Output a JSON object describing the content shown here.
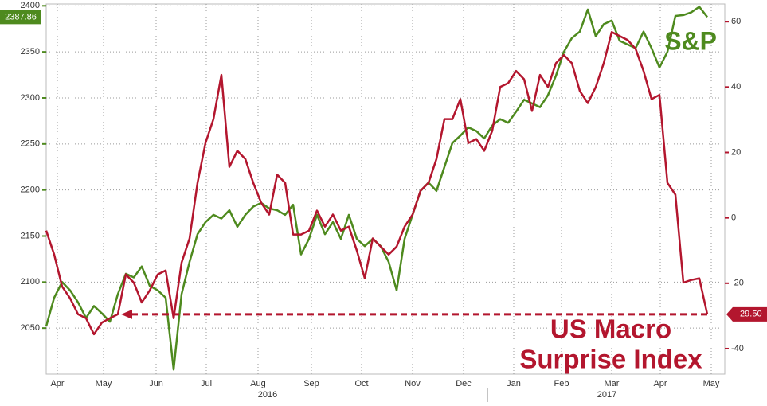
{
  "chart_data": {
    "type": "line",
    "xlim": [
      0,
      85.2
    ],
    "xticks": [
      {
        "value": 1.4,
        "label": "Apr"
      },
      {
        "value": 7.2,
        "label": "May"
      },
      {
        "value": 13.8,
        "label": "Jun"
      },
      {
        "value": 20.1,
        "label": "Jul"
      },
      {
        "value": 26.6,
        "label": "Aug"
      },
      {
        "value": 33.3,
        "label": "Sep"
      },
      {
        "value": 39.6,
        "label": "Oct"
      },
      {
        "value": 46,
        "label": "Nov"
      },
      {
        "value": 52.4,
        "label": "Dec"
      },
      {
        "value": 58.7,
        "label": "Jan"
      },
      {
        "value": 64.7,
        "label": "Feb"
      },
      {
        "value": 71,
        "label": "Mar"
      },
      {
        "value": 77.1,
        "label": "Apr"
      },
      {
        "value": 83.5,
        "label": "May"
      }
    ],
    "year_labels": [
      {
        "value": 27.8,
        "label": "2016"
      },
      {
        "value": 70.4,
        "label": "2017"
      }
    ],
    "ylim": [
      2000,
      2402
    ],
    "yticks": [
      2050,
      2100,
      2150,
      2200,
      2250,
      2300,
      2350,
      2400
    ],
    "y2lim": [
      -47.8,
      65.4
    ],
    "y2ticks": [
      -40,
      -20,
      0,
      20,
      40,
      60
    ],
    "grid": true,
    "annotations": {
      "sp": "S&P",
      "macro": [
        "US Macro",
        "Surprise Index"
      ]
    },
    "series": [
      {
        "name": "S&P",
        "color": "#4e8a1e",
        "axis": "y",
        "values": [
          2052,
          2083,
          2100,
          2091,
          2078,
          2061,
          2074,
          2066,
          2057,
          2087,
          2109,
          2105,
          2117,
          2096,
          2091,
          2083,
          2005,
          2087,
          2122,
          2152,
          2165,
          2173,
          2169,
          2178,
          2160,
          2173,
          2182,
          2186,
          2180,
          2178,
          2173,
          2184,
          2130,
          2147,
          2173,
          2152,
          2165,
          2147,
          2173,
          2147,
          2139,
          2147,
          2139,
          2122,
          2091,
          2147,
          2173,
          2199,
          2208,
          2199,
          2225,
          2251,
          2259,
          2268,
          2264,
          2256,
          2270,
          2277,
          2273,
          2285,
          2298,
          2294,
          2290,
          2303,
          2324,
          2350,
          2365,
          2372,
          2396,
          2367,
          2380,
          2384,
          2362,
          2358,
          2354,
          2372,
          2354,
          2333,
          2350,
          2389,
          2390,
          2393,
          2399,
          2387.86
        ]
      },
      {
        "name": "US Macro Surprise Index",
        "color": "#b3162e",
        "axis": "y2",
        "values": [
          -3.9,
          -11.2,
          -21,
          -24.6,
          -29.5,
          -30.7,
          -35.6,
          -32,
          -30.7,
          -29.5,
          -17.3,
          -19.8,
          -25.9,
          -22.2,
          -17.3,
          -16.1,
          -30.7,
          -13.7,
          -6.3,
          10.7,
          22.9,
          30.2,
          43.7,
          15.6,
          20.5,
          18,
          10.7,
          4.6,
          1,
          13.2,
          10.7,
          -5.1,
          -5.1,
          -3.9,
          2.2,
          -2.7,
          1,
          -3.9,
          -2.7,
          -10,
          -18.5,
          -6.3,
          -8.8,
          -11.2,
          -8.8,
          -2.7,
          1,
          8.3,
          10.7,
          18,
          30.2,
          30.2,
          36.3,
          22.9,
          24.1,
          20.5,
          26.6,
          40,
          41.2,
          44.9,
          42.4,
          32.7,
          43.7,
          40,
          47.3,
          49.8,
          47.3,
          38.8,
          35.1,
          40,
          47.3,
          56.8,
          55.6,
          54.4,
          51.7,
          44.9,
          36.3,
          37.6,
          10.7,
          7.1,
          -19.8,
          -19,
          -18.5,
          -29.5
        ],
        "last_value_label": "-29.50"
      }
    ]
  }
}
